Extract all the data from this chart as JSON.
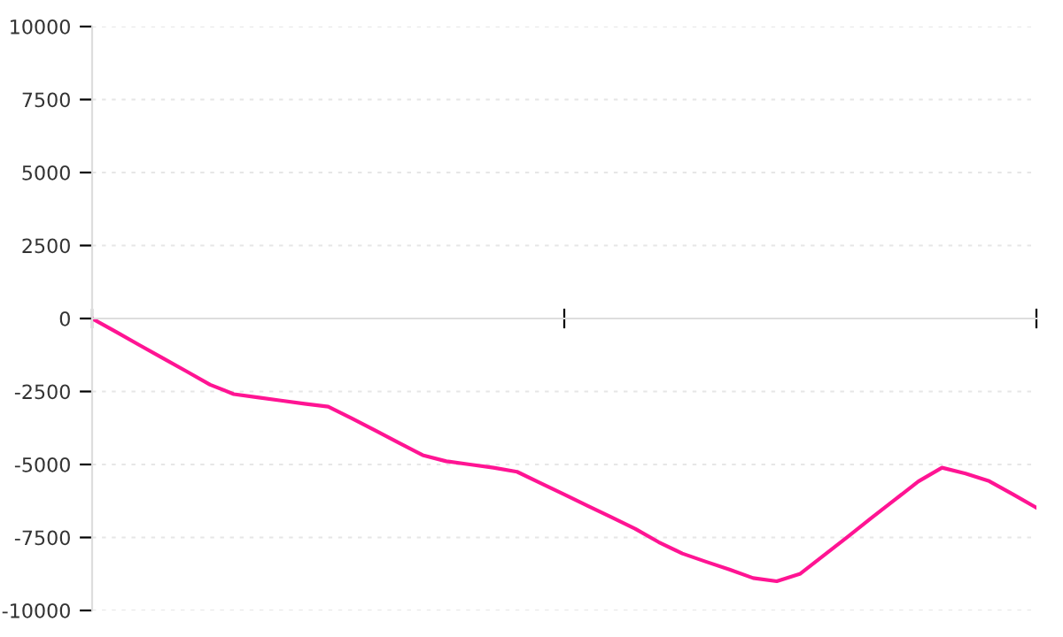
{
  "chart_data": {
    "type": "line",
    "categories": [
      null,
      null,
      null,
      null,
      null,
      null,
      null,
      null,
      null,
      null,
      null,
      null,
      null,
      null,
      null,
      null,
      null,
      null,
      null,
      null,
      null,
      null,
      null,
      null,
      null,
      null,
      null,
      null,
      null,
      null,
      null,
      null,
      null,
      null,
      null,
      null,
      null,
      null,
      null,
      null,
      null
    ],
    "series": [
      {
        "color": "#ff1493",
        "values": [
          0,
          -450,
          -910,
          -1360,
          -1810,
          -2270,
          -2590,
          -2700,
          -2810,
          -2920,
          -3020,
          -3420,
          -3840,
          -4260,
          -4680,
          -4890,
          -5000,
          -5110,
          -5250,
          -5640,
          -6030,
          -6420,
          -6810,
          -7200,
          -7660,
          -8050,
          -8330,
          -8600,
          -8890,
          -9000,
          -8740,
          -8110,
          -7480,
          -6840,
          -6210,
          -5580,
          -5110,
          -5310,
          -5570,
          -6020,
          -6480
        ]
      }
    ],
    "ylim": [
      -10000,
      10000
    ],
    "yticks": [
      -10000,
      -7500,
      -5000,
      -2500,
      0,
      2500,
      5000,
      7500,
      10000
    ],
    "grid": "y",
    "marker": "none",
    "line_style": "solid"
  }
}
